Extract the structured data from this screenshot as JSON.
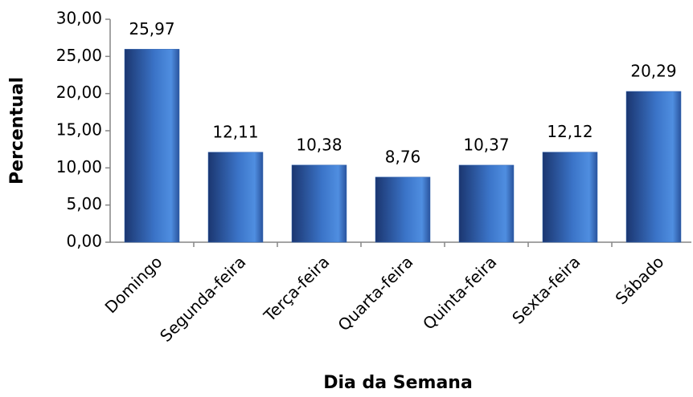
{
  "chart_data": {
    "type": "bar",
    "x_label": "Dia da Semana",
    "y_label": "Percentual",
    "categories": [
      "Domingo",
      "Segunda-feira",
      "Terça-feira",
      "Quarta-feira",
      "Quinta-feira",
      "Sexta-feira",
      "Sábado"
    ],
    "values": [
      25.97,
      12.11,
      10.38,
      8.76,
      10.37,
      12.12,
      20.29
    ],
    "value_labels": [
      "25,97",
      "12,11",
      "10,38",
      "8,76",
      "10,37",
      "12,12",
      "20,29"
    ],
    "color": "#2f62b0",
    "ylim": [
      0,
      30
    ],
    "yticks": [
      {
        "value": 0,
        "label": "0,00"
      },
      {
        "value": 5,
        "label": "5,00"
      },
      {
        "value": 10,
        "label": "10,00"
      },
      {
        "value": 15,
        "label": "15,00"
      },
      {
        "value": 20,
        "label": "20,00"
      },
      {
        "value": 25,
        "label": "25,00"
      },
      {
        "value": 30,
        "label": "30,00"
      }
    ],
    "grid": false
  }
}
